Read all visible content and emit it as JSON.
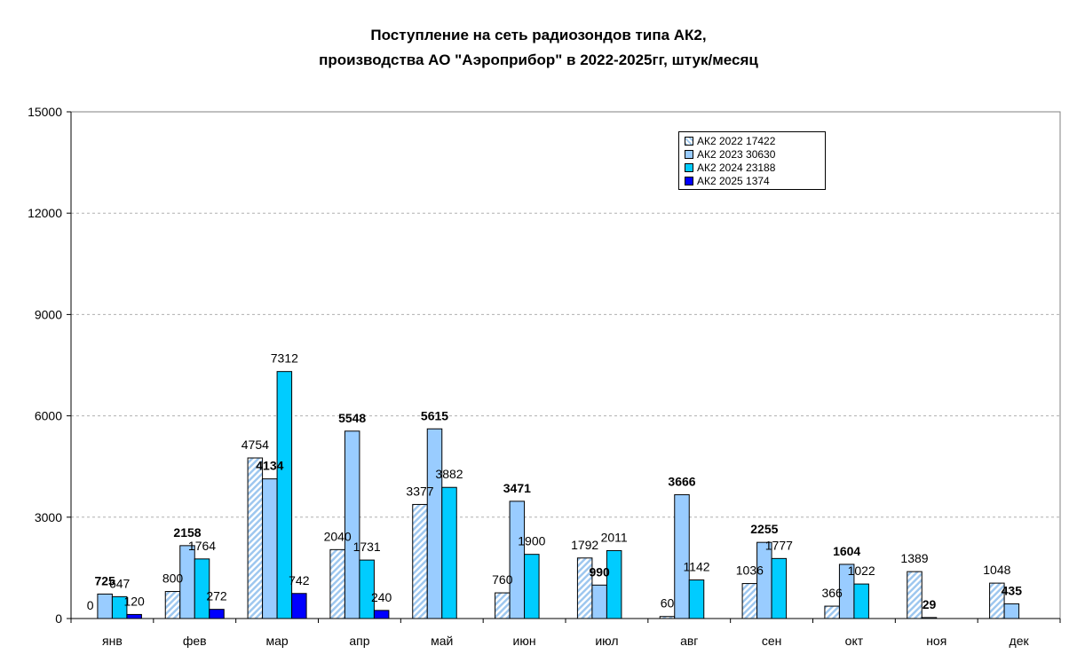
{
  "chart_data": {
    "type": "bar",
    "title_line1": "Поступление на сеть радиозондов типа АК2,",
    "title_line2": "производства АО \"Аэроприбор\"  в 2022-2025гг, штук/месяц",
    "categories": [
      "янв",
      "фев",
      "мар",
      "апр",
      "май",
      "июн",
      "июл",
      "авг",
      "сен",
      "окт",
      "ноя",
      "дек"
    ],
    "series": [
      {
        "name": "АК2 2022 17422",
        "color": "#dbe8f7",
        "hatch": true,
        "values": [
          0,
          800,
          4754,
          2040,
          3377,
          760,
          1792,
          60,
          1036,
          366,
          1389,
          1048
        ],
        "bold": false
      },
      {
        "name": "АК2 2023 30630",
        "color": "#99ccff",
        "hatch": false,
        "values": [
          725,
          2158,
          4134,
          5548,
          5615,
          3471,
          990,
          3666,
          2255,
          1604,
          29,
          435
        ],
        "bold": true
      },
      {
        "name": "АК2 2024 23188",
        "color": "#00ccff",
        "hatch": false,
        "values": [
          647,
          1764,
          7312,
          1731,
          3882,
          1900,
          2011,
          1142,
          1777,
          1022,
          null,
          null
        ],
        "bold": false
      },
      {
        "name": "АК2 2025 1374",
        "color": "#0000ff",
        "hatch": false,
        "values": [
          120,
          272,
          742,
          240,
          null,
          null,
          null,
          null,
          null,
          null,
          null,
          null
        ],
        "bold": false
      }
    ],
    "ylim": [
      0,
      15000
    ],
    "yticks": [
      0,
      3000,
      6000,
      9000,
      12000,
      15000
    ],
    "ytick_labels": [
      "0",
      "3000",
      "6000",
      "9000",
      "12000",
      "15000"
    ],
    "grid": true,
    "legend_position": "top-right"
  }
}
